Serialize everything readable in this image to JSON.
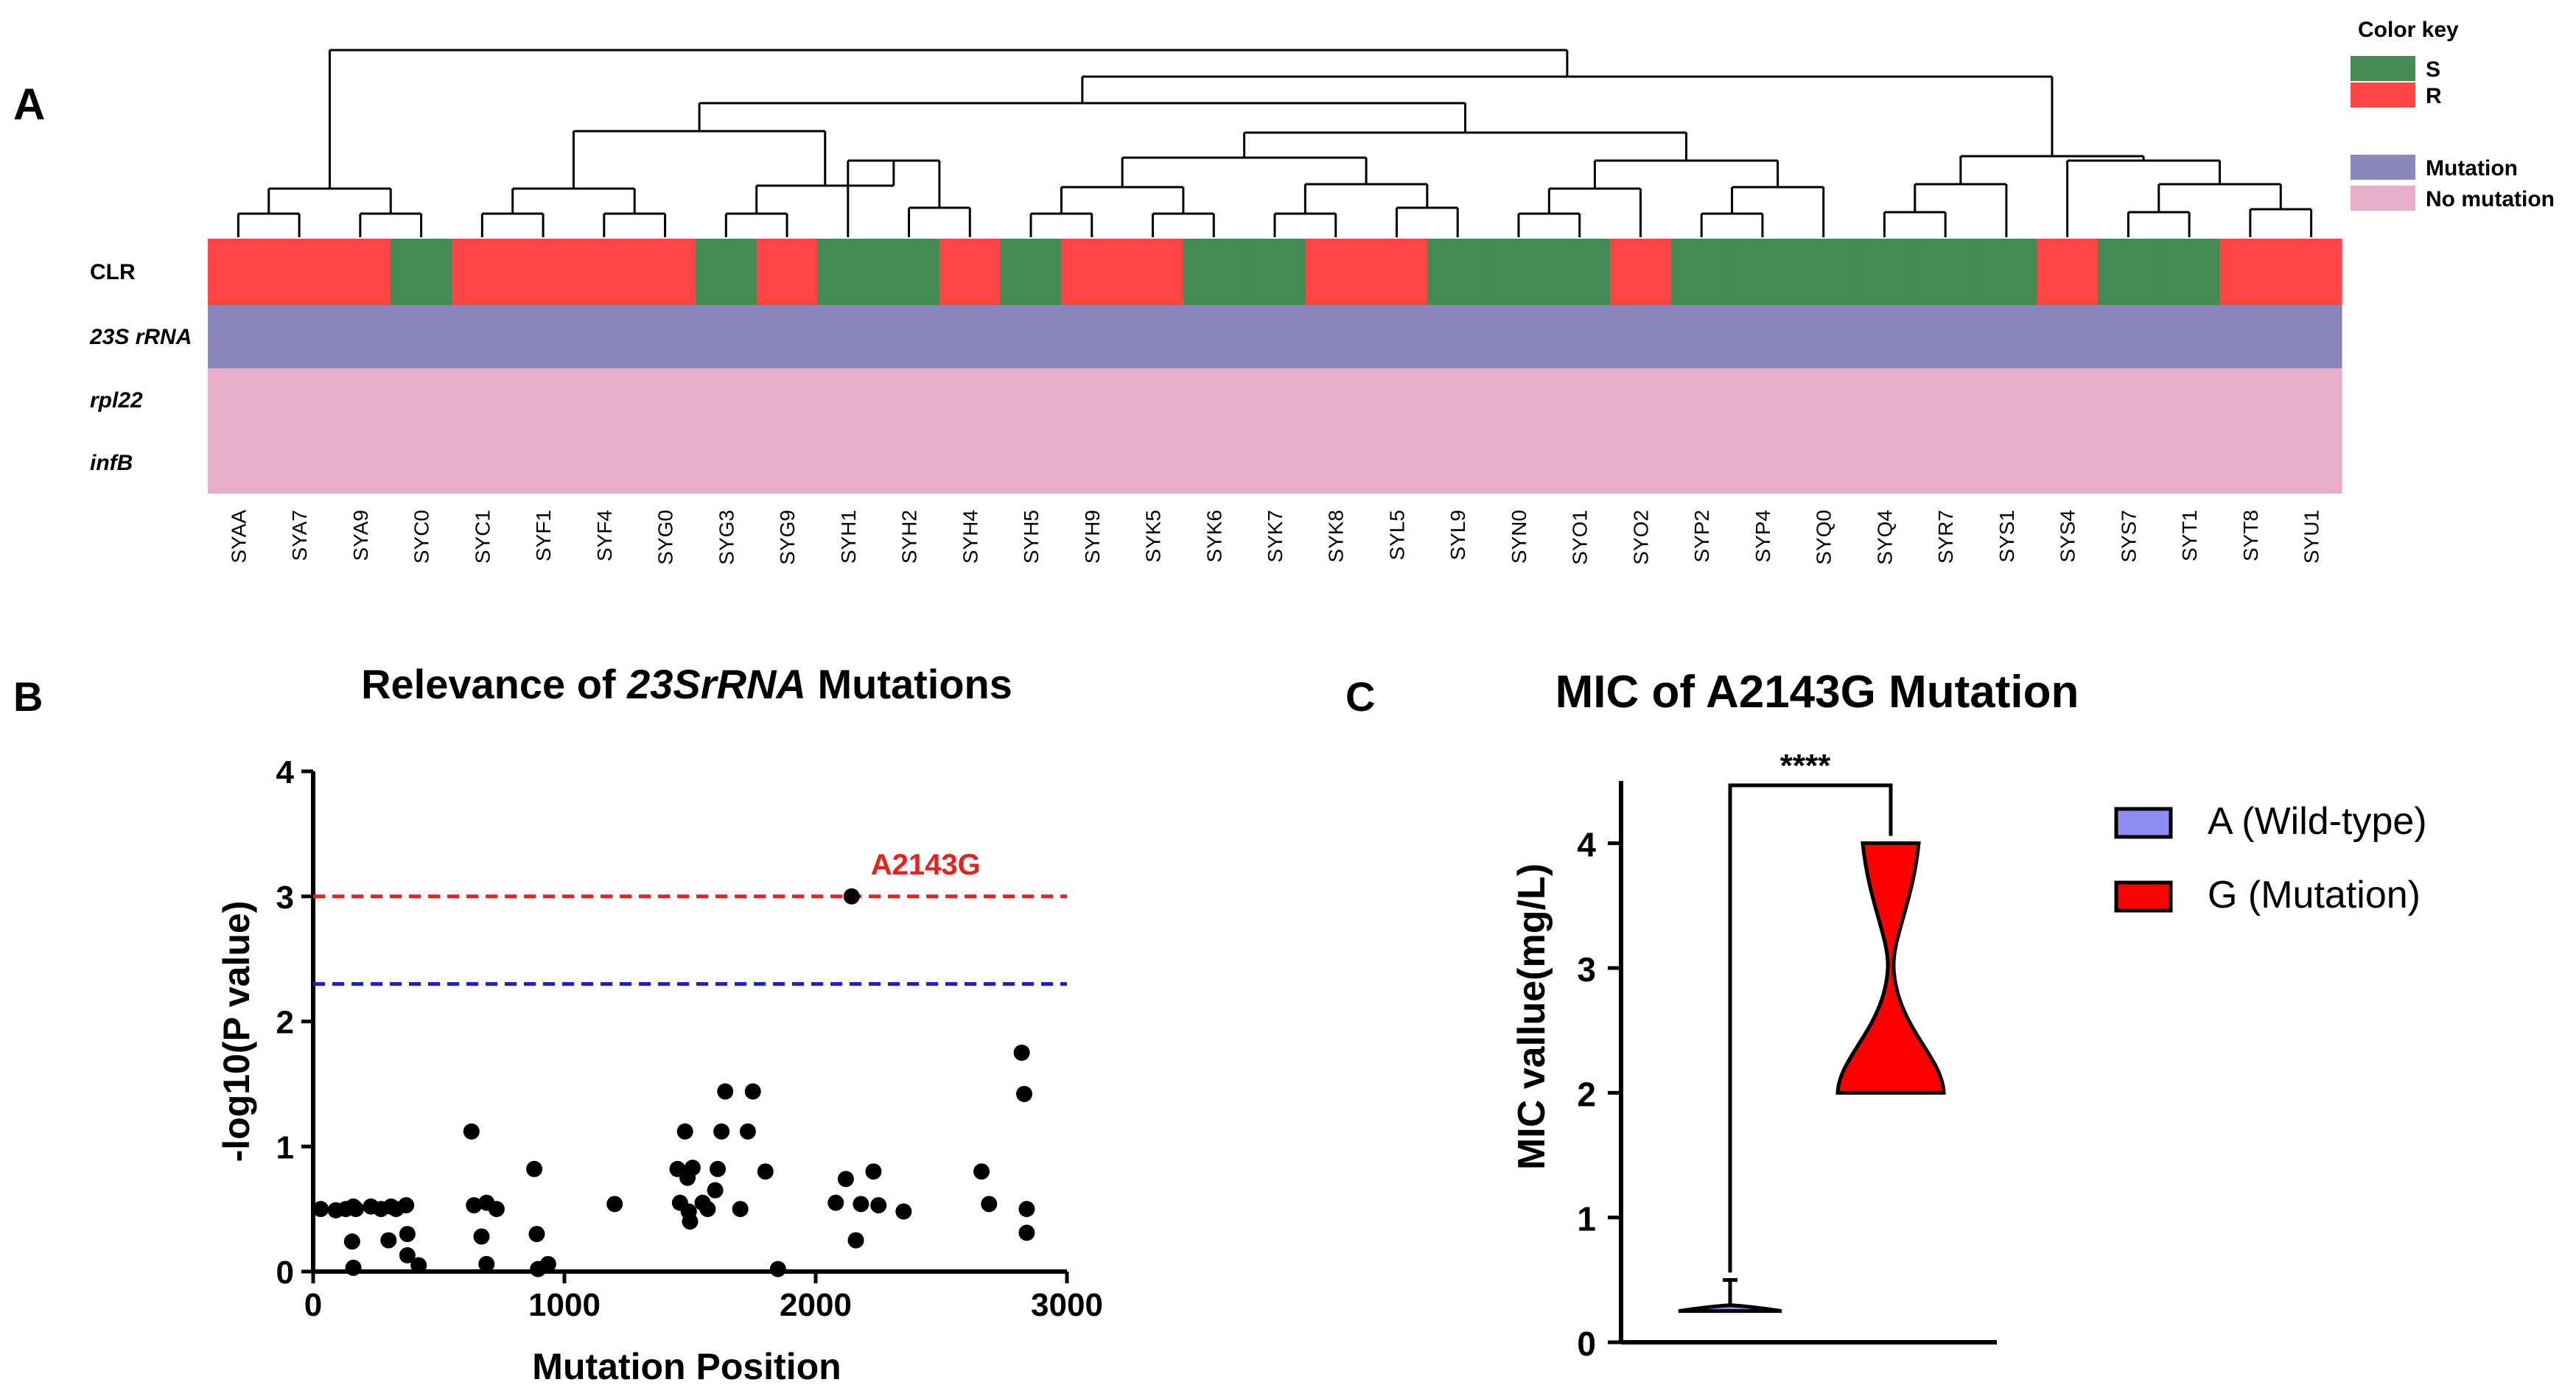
{
  "figure": {
    "panel_a_letter": "A",
    "panel_b_letter": "B",
    "panel_c_letter": "C"
  },
  "chart_data": [
    {
      "type": "heatmap",
      "panel": "A",
      "color_key": {
        "title": "Color key",
        "entries": [
          {
            "label": "S",
            "color": "#438a55"
          },
          {
            "label": "R",
            "color": "#fe4445"
          },
          {
            "label": "Mutation",
            "color": "#8a86bc"
          },
          {
            "label": "No mutation",
            "color": "#e8aec8"
          }
        ]
      },
      "rows": [
        {
          "label": "CLR",
          "italic": false
        },
        {
          "label": "23S rRNA",
          "italic": true
        },
        {
          "label": "rpl22",
          "italic": true
        },
        {
          "label": "infB",
          "italic": true
        }
      ],
      "samples": [
        "SYAA",
        "SYA7",
        "SYA9",
        "SYC0",
        "SYC1",
        "SYF1",
        "SYF4",
        "SYG0",
        "SYG3",
        "SYG9",
        "SYH1",
        "SYH2",
        "SYH4",
        "SYH5",
        "SYH9",
        "SYK5",
        "SYK6",
        "SYK7",
        "SYK8",
        "SYL5",
        "SYL9",
        "SYN0",
        "SYO1",
        "SYO2",
        "SYP2",
        "SYP4",
        "SYQ0",
        "SYQ4",
        "SYR7",
        "SYS1",
        "SYS4",
        "SYS7",
        "SYT1",
        "SYT8",
        "SYU1"
      ],
      "clr": [
        "R",
        "R",
        "R",
        "S",
        "R",
        "R",
        "R",
        "R",
        "S",
        "R",
        "S",
        "S",
        "R",
        "S",
        "R",
        "R",
        "S",
        "S",
        "R",
        "R",
        "S",
        "S",
        "S",
        "R",
        "S",
        "S",
        "S",
        "S",
        "S",
        "S",
        "R",
        "S",
        "S",
        "R",
        "R"
      ],
      "rrna_23s": "Mutation",
      "rpl22": "No mutation",
      "infb": "No mutation"
    },
    {
      "type": "scatter",
      "panel": "B",
      "title_pre": "Relevance of ",
      "title_italic": "23SrRNA",
      "title_post": " Mutations",
      "xlabel": "Mutation Position",
      "ylabel": "-log10(P value)",
      "xlim": [
        0,
        3000
      ],
      "ylim": [
        0,
        4
      ],
      "xticks": [
        0,
        1000,
        2000,
        3000
      ],
      "yticks": [
        0,
        1,
        2,
        3,
        4
      ],
      "thresholds": [
        {
          "y": 3.0,
          "color": "#e8211f"
        },
        {
          "y": 2.3,
          "color": "#1a1ae0"
        }
      ],
      "annotation": {
        "label": "A2143G",
        "x": 2143,
        "y": 3.0,
        "color": "#e8211f"
      },
      "points": [
        [
          30,
          0.5
        ],
        [
          90,
          0.49
        ],
        [
          130,
          0.5
        ],
        [
          155,
          0.24
        ],
        [
          160,
          0.52
        ],
        [
          160,
          0.03
        ],
        [
          170,
          0.5
        ],
        [
          230,
          0.52
        ],
        [
          270,
          0.5
        ],
        [
          300,
          0.25
        ],
        [
          310,
          0.52
        ],
        [
          330,
          0.5
        ],
        [
          370,
          0.53
        ],
        [
          375,
          0.3
        ],
        [
          375,
          0.13
        ],
        [
          420,
          0.05
        ],
        [
          630,
          1.12
        ],
        [
          640,
          0.53
        ],
        [
          670,
          0.28
        ],
        [
          690,
          0.55
        ],
        [
          690,
          0.06
        ],
        [
          730,
          0.5
        ],
        [
          880,
          0.82
        ],
        [
          890,
          0.3
        ],
        [
          895,
          0.02
        ],
        [
          935,
          0.06
        ],
        [
          1200,
          0.54
        ],
        [
          1450,
          0.82
        ],
        [
          1460,
          0.55
        ],
        [
          1480,
          1.12
        ],
        [
          1490,
          0.75
        ],
        [
          1495,
          0.48
        ],
        [
          1500,
          0.4
        ],
        [
          1510,
          0.83
        ],
        [
          1550,
          0.55
        ],
        [
          1570,
          0.5
        ],
        [
          1600,
          0.65
        ],
        [
          1610,
          0.82
        ],
        [
          1625,
          1.12
        ],
        [
          1640,
          1.44
        ],
        [
          1700,
          0.5
        ],
        [
          1730,
          1.12
        ],
        [
          1750,
          1.44
        ],
        [
          1800,
          0.8
        ],
        [
          1850,
          0.02
        ],
        [
          2080,
          0.55
        ],
        [
          2120,
          0.74
        ],
        [
          2160,
          0.25
        ],
        [
          2180,
          0.54
        ],
        [
          2230,
          0.8
        ],
        [
          2250,
          0.53
        ],
        [
          2350,
          0.48
        ],
        [
          2660,
          0.8
        ],
        [
          2690,
          0.54
        ],
        [
          2820,
          1.75
        ],
        [
          2830,
          1.42
        ],
        [
          2840,
          0.5
        ],
        [
          2840,
          0.31
        ],
        [
          2143,
          3.0
        ]
      ]
    },
    {
      "type": "violin",
      "panel": "C",
      "title": "MIC of A2143G Mutation",
      "ylabel": "MIC vallue(mg/L)",
      "ylim": [
        0,
        4.5
      ],
      "yticks": [
        0,
        1,
        2,
        3,
        4
      ],
      "significance": "****",
      "series": [
        {
          "name": "A (Wild-type)",
          "color": "#8f8cf4",
          "min": 0.25,
          "max": 0.5,
          "mode": 0.25
        },
        {
          "name": "G (Mutation)",
          "color": "#fe0000",
          "min": 2,
          "max": 4,
          "waist": 3
        }
      ]
    }
  ]
}
